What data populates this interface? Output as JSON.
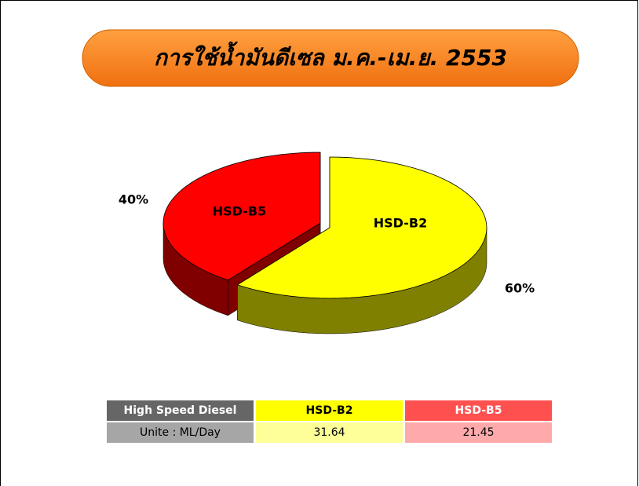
{
  "chart_data": {
    "type": "pie",
    "title": "การใช้น้ำมันดีเซล ม.ค.-เม.ย. 2553",
    "categories": [
      "HSD-B2",
      "HSD-B5"
    ],
    "values": [
      60,
      40
    ],
    "value_labels": [
      "60%",
      "40%"
    ],
    "colors": [
      "#ffff00",
      "#ff0000"
    ]
  },
  "table": {
    "header": [
      "High Speed Diesel",
      "HSD-B2",
      "HSD-B5"
    ],
    "rows": [
      [
        "Unite : ML/Day",
        "31.64",
        "21.45"
      ]
    ]
  }
}
